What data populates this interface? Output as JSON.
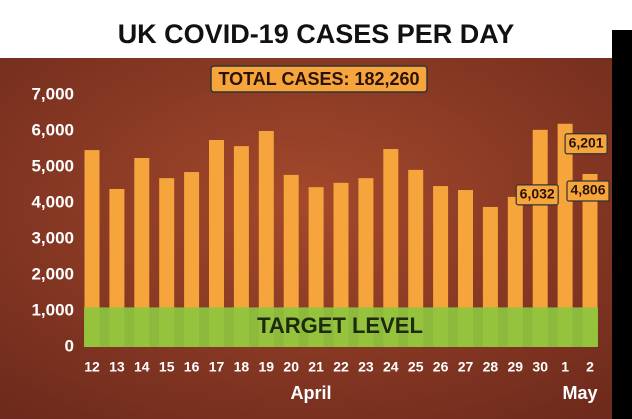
{
  "chart_data": {
    "type": "bar",
    "title": "UK COVID-19 CASES PER DAY",
    "subtitle": "TOTAL CASES: 182,260",
    "categories": [
      "12",
      "13",
      "14",
      "15",
      "16",
      "17",
      "18",
      "19",
      "20",
      "21",
      "22",
      "23",
      "24",
      "25",
      "26",
      "27",
      "28",
      "29",
      "30",
      "1",
      "2"
    ],
    "month_labels": [
      "April",
      "May"
    ],
    "values": [
      5470,
      4390,
      5250,
      4690,
      4860,
      5750,
      5580,
      6000,
      4780,
      4440,
      4560,
      4690,
      5500,
      4920,
      4470,
      4360,
      3890,
      4170,
      6032,
      6201,
      4806
    ],
    "value_labels": [
      null,
      null,
      null,
      null,
      null,
      null,
      null,
      null,
      null,
      null,
      null,
      null,
      null,
      null,
      null,
      null,
      null,
      null,
      "6,032",
      "6,201",
      "4,806"
    ],
    "color": "#f5a53c",
    "target": {
      "label": "TARGET LEVEL",
      "value": 1100,
      "color": "#8dc63f"
    },
    "ylim": [
      0,
      7000
    ],
    "yticks": [
      0,
      {
        "value": 1000,
        "label": "1,000"
      },
      {
        "value": 2000,
        "label": "2,000"
      },
      {
        "value": 3000,
        "label": "3,000"
      },
      {
        "value": 4000,
        "label": "4,000"
      },
      {
        "value": 5000,
        "label": "5,000"
      },
      {
        "value": 6000,
        "label": "6,000"
      },
      {
        "value": 7000,
        "label": "7,000"
      }
    ]
  }
}
